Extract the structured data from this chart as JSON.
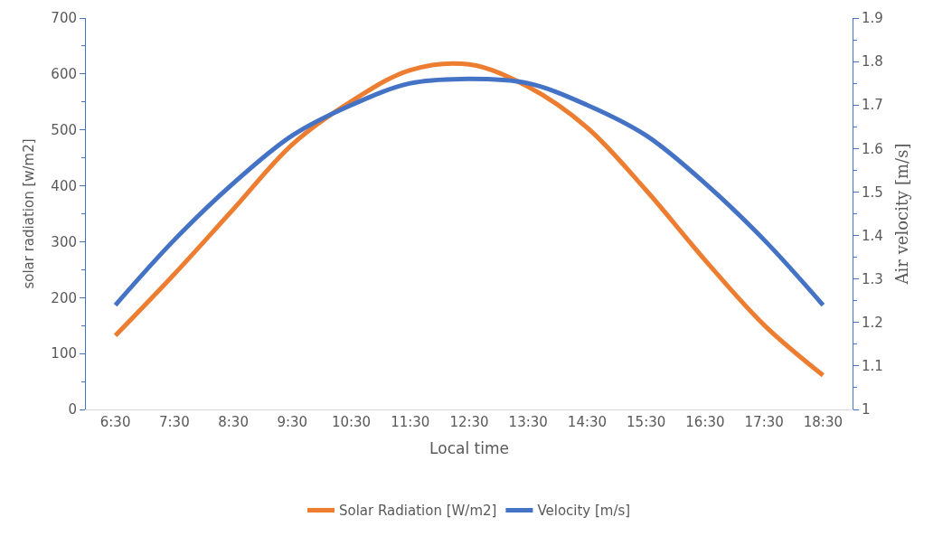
{
  "chart_data": {
    "type": "line",
    "xlabel": "Local time",
    "ylabel": "solar radiation [w/m2]",
    "y2label": "Air velocity [m/s]",
    "categories": [
      "6:30",
      "7:30",
      "8:30",
      "9:30",
      "10:30",
      "11:30",
      "12:30",
      "13:30",
      "14:30",
      "15:30",
      "16:30",
      "17:30",
      "18:30"
    ],
    "series": [
      {
        "name": "Solar Radiation [W/m2]",
        "color": "#ed7d31",
        "values": [
          132,
          242,
          358,
          474,
          551,
          607,
          617,
          577,
          504,
          392,
          267,
          151,
          61
        ]
      },
      {
        "name": "Velocity [m/s]",
        "color": "#4472c4",
        "axis": "y2",
        "values": [
          1.24,
          1.39,
          1.52,
          1.63,
          1.7,
          1.75,
          1.76,
          1.75,
          1.7,
          1.63,
          1.52,
          1.39,
          1.24
        ]
      }
    ],
    "ylim": [
      0,
      700
    ],
    "yticks": [
      0,
      100,
      200,
      300,
      400,
      500,
      600,
      700
    ],
    "y2lim": [
      1,
      1.9
    ],
    "y2ticks": [
      1,
      1.1,
      1.2,
      1.3,
      1.4,
      1.5,
      1.6,
      1.7,
      1.8,
      1.9
    ],
    "legend": "bottom",
    "marker": "none",
    "line_style": "solid"
  }
}
